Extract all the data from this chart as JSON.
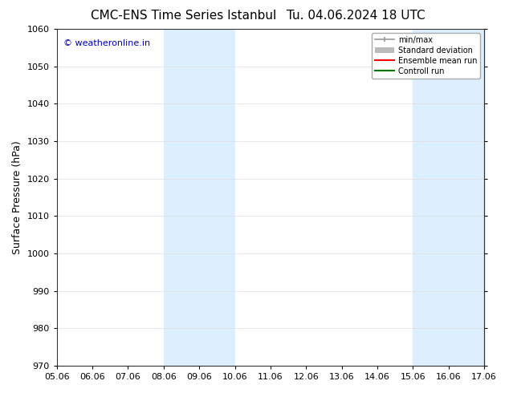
{
  "title_left": "CMC-ENS Time Series Istanbul",
  "title_right": "Tu. 04.06.2024 18 UTC",
  "ylabel": "Surface Pressure (hPa)",
  "xlabel": "",
  "ylim": [
    970,
    1060
  ],
  "yticks": [
    970,
    980,
    990,
    1000,
    1010,
    1020,
    1030,
    1040,
    1050,
    1060
  ],
  "xtick_labels": [
    "05.06",
    "06.06",
    "07.06",
    "08.06",
    "09.06",
    "10.06",
    "11.06",
    "12.06",
    "13.06",
    "14.06",
    "15.06",
    "16.06",
    "17.06"
  ],
  "xtick_positions": [
    0,
    1,
    2,
    3,
    4,
    5,
    6,
    7,
    8,
    9,
    10,
    11,
    12
  ],
  "bg_color": "#ffffff",
  "plot_bg_color": "#ffffff",
  "shaded_bands": [
    {
      "xstart": 3,
      "xend": 5,
      "color": "#ddeeff"
    },
    {
      "xstart": 10,
      "xend": 12,
      "color": "#ddeeff"
    }
  ],
  "watermark_text": "© weatheronline.in",
  "watermark_color": "#0000bb",
  "watermark_fontsize": 8,
  "legend_items": [
    {
      "label": "min/max",
      "color": "#999999",
      "lw": 1.2,
      "style": "solid"
    },
    {
      "label": "Standard deviation",
      "color": "#bbbbbb",
      "lw": 6,
      "style": "solid"
    },
    {
      "label": "Ensemble mean run",
      "color": "#ff0000",
      "lw": 1.5,
      "style": "solid"
    },
    {
      "label": "Controll run",
      "color": "#007700",
      "lw": 1.5,
      "style": "solid"
    }
  ],
  "title_fontsize": 11,
  "tick_fontsize": 8,
  "ylabel_fontsize": 9,
  "grid_color": "#dddddd",
  "spine_color": "#333333"
}
